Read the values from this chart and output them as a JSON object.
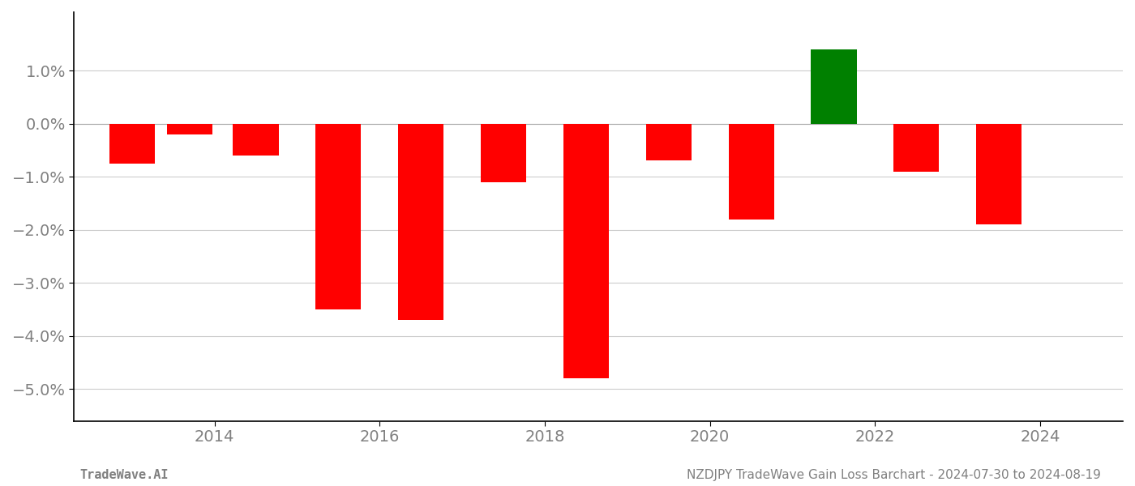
{
  "years": [
    2013,
    2013.7,
    2014.5,
    2015.5,
    2016.5,
    2017.5,
    2018.5,
    2019.5,
    2020.5,
    2021.5,
    2022.5,
    2023.5
  ],
  "values": [
    -0.0075,
    -0.002,
    -0.006,
    -0.035,
    -0.037,
    -0.011,
    -0.048,
    -0.007,
    -0.018,
    0.014,
    -0.009,
    -0.019
  ],
  "colors": [
    "red",
    "red",
    "red",
    "red",
    "red",
    "red",
    "red",
    "red",
    "red",
    "green",
    "red",
    "red"
  ],
  "bar_width": 0.55,
  "ylim": [
    -0.056,
    0.021
  ],
  "yticks": [
    0.01,
    0.0,
    -0.01,
    -0.02,
    -0.03,
    -0.04,
    -0.05
  ],
  "ytick_labels": [
    "1.0%",
    "0.0%",
    "−1.0%",
    "−2.0%",
    "−3.0%",
    "−4.0%",
    "−5.0%"
  ],
  "xlim": [
    2012.3,
    2025.0
  ],
  "xticks": [
    2014,
    2016,
    2018,
    2020,
    2022,
    2024
  ],
  "footer_left": "TradeWave.AI",
  "footer_right": "NZDJPY TradeWave Gain Loss Barchart - 2024-07-30 to 2024-08-19",
  "bg_color": "#ffffff",
  "grid_color": "#cccccc",
  "text_color": "#808080",
  "footer_fontsize": 11,
  "tick_fontsize": 14,
  "left_spine_color": "#000000",
  "bottom_spine_color": "#000000"
}
